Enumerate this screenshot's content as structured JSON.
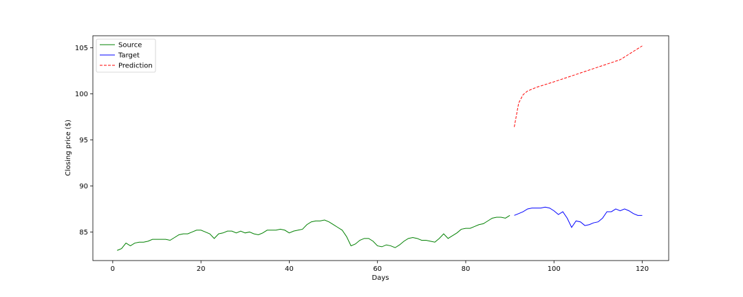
{
  "chart_data": {
    "type": "line",
    "title": "",
    "xlabel": "Days",
    "ylabel": "Closing price ($)",
    "xlim": [
      -4.5,
      126
    ],
    "ylim": [
      81.9,
      106.3
    ],
    "x_ticks": [
      0,
      20,
      40,
      60,
      80,
      100,
      120
    ],
    "y_ticks": [
      85,
      90,
      95,
      100,
      105
    ],
    "grid": false,
    "legend_position": "top-left",
    "series": [
      {
        "name": "Source",
        "color": "#008000",
        "dash": "solid",
        "points": [
          [
            1,
            83.0
          ],
          [
            2,
            83.2
          ],
          [
            3,
            83.8
          ],
          [
            4,
            83.5
          ],
          [
            5,
            83.8
          ],
          [
            6,
            83.9
          ],
          [
            7,
            83.9
          ],
          [
            8,
            84.0
          ],
          [
            9,
            84.2
          ],
          [
            10,
            84.2
          ],
          [
            11,
            84.2
          ],
          [
            12,
            84.2
          ],
          [
            13,
            84.1
          ],
          [
            14,
            84.4
          ],
          [
            15,
            84.7
          ],
          [
            16,
            84.8
          ],
          [
            17,
            84.8
          ],
          [
            18,
            85.0
          ],
          [
            19,
            85.2
          ],
          [
            20,
            85.2
          ],
          [
            21,
            85.0
          ],
          [
            22,
            84.8
          ],
          [
            23,
            84.3
          ],
          [
            24,
            84.8
          ],
          [
            25,
            84.9
          ],
          [
            26,
            85.1
          ],
          [
            27,
            85.1
          ],
          [
            28,
            84.9
          ],
          [
            29,
            85.1
          ],
          [
            30,
            84.9
          ],
          [
            31,
            85.0
          ],
          [
            32,
            84.8
          ],
          [
            33,
            84.7
          ],
          [
            34,
            84.9
          ],
          [
            35,
            85.2
          ],
          [
            36,
            85.2
          ],
          [
            37,
            85.2
          ],
          [
            38,
            85.3
          ],
          [
            39,
            85.2
          ],
          [
            40,
            84.9
          ],
          [
            41,
            85.1
          ],
          [
            42,
            85.2
          ],
          [
            43,
            85.3
          ],
          [
            44,
            85.8
          ],
          [
            45,
            86.1
          ],
          [
            46,
            86.2
          ],
          [
            47,
            86.2
          ],
          [
            48,
            86.3
          ],
          [
            49,
            86.1
          ],
          [
            50,
            85.8
          ],
          [
            51,
            85.5
          ],
          [
            52,
            85.2
          ],
          [
            53,
            84.5
          ],
          [
            54,
            83.5
          ],
          [
            55,
            83.7
          ],
          [
            56,
            84.1
          ],
          [
            57,
            84.3
          ],
          [
            58,
            84.3
          ],
          [
            59,
            84.0
          ],
          [
            60,
            83.5
          ],
          [
            61,
            83.4
          ],
          [
            62,
            83.6
          ],
          [
            63,
            83.5
          ],
          [
            64,
            83.3
          ],
          [
            65,
            83.6
          ],
          [
            66,
            84.0
          ],
          [
            67,
            84.3
          ],
          [
            68,
            84.4
          ],
          [
            69,
            84.3
          ],
          [
            70,
            84.1
          ],
          [
            71,
            84.1
          ],
          [
            72,
            84.0
          ],
          [
            73,
            83.9
          ],
          [
            74,
            84.3
          ],
          [
            75,
            84.8
          ],
          [
            76,
            84.3
          ],
          [
            77,
            84.6
          ],
          [
            78,
            84.9
          ],
          [
            79,
            85.3
          ],
          [
            80,
            85.4
          ],
          [
            81,
            85.4
          ],
          [
            82,
            85.6
          ],
          [
            83,
            85.8
          ],
          [
            84,
            85.9
          ],
          [
            85,
            86.2
          ],
          [
            86,
            86.5
          ],
          [
            87,
            86.6
          ],
          [
            88,
            86.6
          ],
          [
            89,
            86.5
          ],
          [
            90,
            86.8
          ]
        ]
      },
      {
        "name": "Target",
        "color": "#0000ff",
        "dash": "solid",
        "points": [
          [
            91,
            86.8
          ],
          [
            92,
            87.0
          ],
          [
            93,
            87.2
          ],
          [
            94,
            87.5
          ],
          [
            95,
            87.6
          ],
          [
            96,
            87.6
          ],
          [
            97,
            87.6
          ],
          [
            98,
            87.7
          ],
          [
            99,
            87.6
          ],
          [
            100,
            87.3
          ],
          [
            101,
            86.9
          ],
          [
            102,
            87.2
          ],
          [
            103,
            86.5
          ],
          [
            104,
            85.5
          ],
          [
            105,
            86.2
          ],
          [
            106,
            86.1
          ],
          [
            107,
            85.7
          ],
          [
            108,
            85.8
          ],
          [
            109,
            86.0
          ],
          [
            110,
            86.1
          ],
          [
            111,
            86.5
          ],
          [
            112,
            87.2
          ],
          [
            113,
            87.2
          ],
          [
            114,
            87.5
          ],
          [
            115,
            87.3
          ],
          [
            116,
            87.5
          ],
          [
            117,
            87.3
          ],
          [
            118,
            87.0
          ],
          [
            119,
            86.8
          ],
          [
            120,
            86.8
          ]
        ]
      },
      {
        "name": "Prediction",
        "color": "#ff0000",
        "dash": "dashed",
        "points": [
          [
            91,
            96.4
          ],
          [
            92,
            99.0
          ],
          [
            93,
            99.9
          ],
          [
            94,
            100.3
          ],
          [
            95,
            100.5
          ],
          [
            96,
            100.7
          ],
          [
            97,
            100.85
          ],
          [
            98,
            101.0
          ],
          [
            100,
            101.3
          ],
          [
            105,
            102.1
          ],
          [
            110,
            102.9
          ],
          [
            115,
            103.7
          ],
          [
            120,
            105.2
          ]
        ]
      }
    ]
  }
}
